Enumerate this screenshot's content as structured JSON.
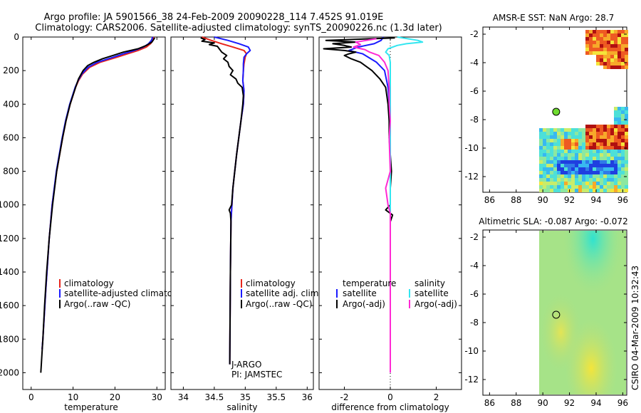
{
  "header": {
    "line1": "Argo profile: JA 5901566_38 24-Feb-2009 20090228_114 7.452S 91.019E",
    "line2": "Climatology: CARS2006. Satellite-adjusted climatology: synTS_20090226.nc (1.3d later)"
  },
  "colors": {
    "climatology": "#e8251b",
    "satellite": "#1a1aff",
    "argo": "#000000",
    "sat_salinity": "#33e6f0",
    "argo_salinity_diff": "#ff2ad4",
    "dot": "#6fdc2f"
  },
  "chart_data": [
    {
      "type": "line",
      "name": "temperature-profile",
      "xlabel": "temperature",
      "ylabel": "",
      "xlim": [
        -2,
        32
      ],
      "ylim": [
        2100,
        0
      ],
      "xticks": [
        0,
        10,
        20,
        30
      ],
      "yticks": [
        0,
        200,
        400,
        600,
        800,
        1000,
        1200,
        1400,
        1600,
        1800,
        2000
      ],
      "legend": [
        "climatology",
        "satellite-adjusted climatology",
        "Argo(..raw -QC)"
      ],
      "series": [
        {
          "name": "climatology",
          "depth": [
            0,
            20,
            40,
            60,
            80,
            100,
            120,
            150,
            180,
            220,
            260,
            300,
            400,
            500,
            600,
            800,
            1000,
            1200,
            1500,
            1800,
            1860
          ],
          "values": [
            29.3,
            29.1,
            28.5,
            27.5,
            25.5,
            23.0,
            20.5,
            16.5,
            14.0,
            12.3,
            11.3,
            10.6,
            9.3,
            8.3,
            7.5,
            6.1,
            5.0,
            4.3,
            3.5,
            2.8,
            2.6
          ]
        },
        {
          "name": "satellite-adjusted climatology",
          "depth": [
            0,
            20,
            40,
            60,
            80,
            100,
            120,
            150,
            180,
            220,
            260,
            300,
            400,
            500,
            600,
            800,
            1000,
            1200,
            1500,
            1800,
            1860
          ],
          "values": [
            29.0,
            28.7,
            28.0,
            26.8,
            24.6,
            22.0,
            19.6,
            15.8,
            13.6,
            12.1,
            11.2,
            10.5,
            9.2,
            8.2,
            7.4,
            6.0,
            5.0,
            4.3,
            3.5,
            2.8,
            2.6
          ]
        },
        {
          "name": "Argo(..raw -QC)",
          "depth": [
            5,
            30,
            50,
            70,
            90,
            110,
            130,
            150,
            170,
            200,
            250,
            300,
            400,
            500,
            600,
            800,
            1000,
            1200,
            1400,
            1600,
            1800,
            2000
          ],
          "values": [
            29.5,
            28.8,
            27.5,
            25.5,
            22.0,
            19.5,
            17.0,
            15.0,
            13.5,
            12.4,
            11.3,
            10.6,
            9.3,
            8.3,
            7.5,
            6.1,
            5.1,
            4.3,
            3.7,
            3.2,
            2.8,
            2.3
          ]
        }
      ]
    },
    {
      "type": "line",
      "name": "salinity-profile",
      "xlabel": "salinity",
      "xlim": [
        33.8,
        36.1
      ],
      "ylim": [
        2100,
        0
      ],
      "xticks": [
        34,
        34.5,
        35,
        35.5,
        36
      ],
      "legend": [
        "climatology",
        "satellite adj. clim.",
        "Argo(..raw -QC)"
      ],
      "annotations": [
        "J-ARGO",
        "PI: JAMSTEC"
      ],
      "series": [
        {
          "name": "climatology",
          "depth": [
            0,
            20,
            40,
            60,
            80,
            100,
            120,
            160,
            200,
            260,
            320,
            400,
            500,
            700,
            900,
            1100,
            1400,
            1700,
            1950
          ],
          "values": [
            34.3,
            34.45,
            34.62,
            34.8,
            34.98,
            35.02,
            35.0,
            34.98,
            34.97,
            34.96,
            34.98,
            34.97,
            34.93,
            34.86,
            34.8,
            34.77,
            34.76,
            34.755,
            34.75
          ]
        },
        {
          "name": "satellite adj. clim.",
          "depth": [
            0,
            20,
            40,
            60,
            80,
            100,
            120,
            160,
            200,
            260,
            320,
            400,
            500,
            700,
            900,
            1100,
            1400,
            1700,
            1950
          ],
          "values": [
            34.5,
            34.72,
            34.9,
            35.05,
            35.08,
            35.02,
            34.98,
            34.97,
            34.97,
            34.96,
            34.98,
            34.97,
            34.93,
            34.86,
            34.8,
            34.77,
            34.76,
            34.755,
            34.75
          ]
        },
        {
          "name": "Argo(..raw -QC)",
          "depth": [
            5,
            15,
            25,
            35,
            45,
            55,
            70,
            90,
            110,
            130,
            150,
            175,
            200,
            225,
            250,
            275,
            300,
            350,
            400,
            500,
            700,
            900,
            1000,
            1030,
            1050,
            1100,
            1400,
            1700,
            1950
          ],
          "values": [
            34.28,
            34.35,
            34.3,
            34.5,
            34.42,
            34.55,
            34.58,
            34.62,
            34.7,
            34.65,
            34.72,
            34.74,
            34.8,
            34.76,
            34.85,
            34.88,
            34.95,
            34.97,
            34.96,
            34.93,
            34.86,
            34.8,
            34.78,
            34.74,
            34.76,
            34.77,
            34.76,
            34.755,
            34.75
          ]
        }
      ]
    },
    {
      "type": "line",
      "name": "difference-profile",
      "xlabel": "difference from climatology",
      "xlim": [
        -3.1,
        3.1
      ],
      "ylim": [
        2100,
        0
      ],
      "xticks": [
        -2,
        0,
        2
      ],
      "legend": [
        "temperature",
        "satellite",
        "Argo(-adj)",
        "salinity",
        "satellite",
        "Argo(-adj)"
      ],
      "series": [
        {
          "name": "temperature satellite",
          "depth": [
            0,
            20,
            40,
            60,
            80,
            100,
            150,
            200,
            300,
            400,
            600,
            800,
            1000,
            1500,
            2000
          ],
          "values": [
            -0.3,
            -0.4,
            -0.7,
            -1.4,
            -1.8,
            -1.2,
            -0.6,
            -0.25,
            -0.1,
            -0.05,
            0,
            0,
            0,
            0,
            0
          ]
        },
        {
          "name": "temperature Argo(-adj)",
          "depth": [
            5,
            20,
            30,
            40,
            50,
            60,
            70,
            80,
            90,
            100,
            110,
            130,
            150,
            170,
            200,
            250,
            300,
            400,
            500,
            600,
            700,
            800,
            900,
            1000,
            1030,
            1060,
            1100,
            1200,
            1500,
            2000
          ],
          "values": [
            0.2,
            -2.8,
            -1.5,
            -2.5,
            -2.0,
            -1.7,
            -2.9,
            -2.0,
            -1.5,
            -1.8,
            -2.0,
            -1.7,
            -1.3,
            -1.1,
            -0.8,
            -0.45,
            -0.2,
            -0.1,
            -0.05,
            -0.05,
            0,
            0.05,
            0,
            0,
            -0.2,
            0.1,
            0,
            0,
            0,
            0
          ]
        },
        {
          "name": "salinity satellite",
          "depth": [
            0,
            20,
            30,
            40,
            50,
            70,
            90,
            110,
            150,
            200,
            300,
            600,
            1000,
            1500,
            2000
          ],
          "values": [
            0.3,
            1.2,
            1.4,
            0.7,
            0.3,
            -0.1,
            -0.2,
            -0.05,
            0,
            0,
            0,
            0,
            0,
            0,
            0
          ]
        },
        {
          "name": "salinity Argo(-adj)",
          "depth": [
            10,
            30,
            45,
            60,
            75,
            90,
            110,
            150,
            200,
            300,
            400,
            500,
            600,
            800,
            900,
            1000,
            1050,
            1100,
            1500,
            2000
          ],
          "values": [
            -0.6,
            -1.5,
            -1.3,
            -1.6,
            -1.1,
            -0.9,
            -0.5,
            -0.25,
            -0.1,
            -0.05,
            -0.05,
            0,
            -0.05,
            0,
            -0.2,
            -0.1,
            0,
            0,
            0,
            0
          ]
        }
      ]
    },
    {
      "type": "heatmap",
      "name": "amsre-sst-map",
      "title": "AMSR-E SST: NaN Argo: 28.7",
      "xlim": [
        85.5,
        96.3
      ],
      "ylim": [
        -13.1,
        -1.5
      ],
      "xticks": [
        86,
        88,
        90,
        92,
        94,
        96
      ],
      "yticks": [
        -2,
        -4,
        -6,
        -8,
        -10,
        -12
      ],
      "argo_position": {
        "lon": 91.0,
        "lat": -7.45
      }
    },
    {
      "type": "heatmap",
      "name": "altimetric-sla-map",
      "title": "Altimetric SLA: -0.087 Argo: -0.072",
      "xlim": [
        85.5,
        96.3
      ],
      "ylim": [
        -13.1,
        -1.5
      ],
      "xticks": [
        86,
        88,
        90,
        92,
        94,
        96
      ],
      "yticks": [
        -2,
        -4,
        -6,
        -8,
        -10,
        -12
      ],
      "argo_position": {
        "lon": 91.0,
        "lat": -7.45
      }
    }
  ],
  "footer": {
    "credit": "CSIRO 04-Mar-2009 10:32:43"
  }
}
